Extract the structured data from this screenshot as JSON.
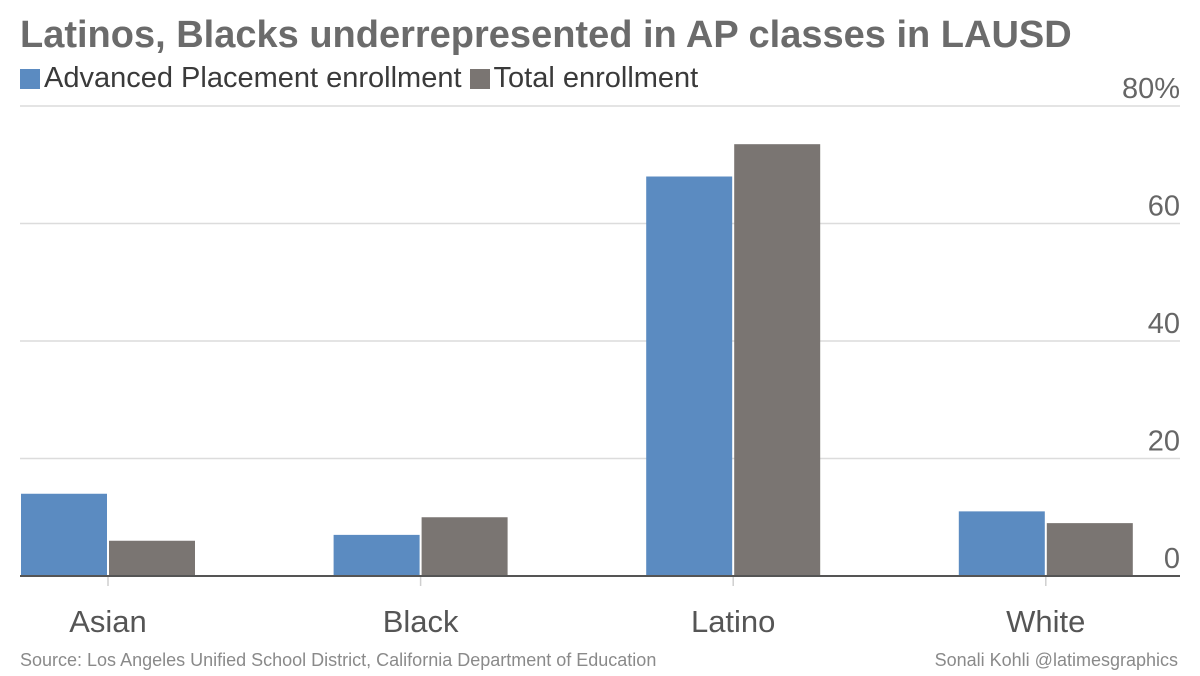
{
  "chart_data": {
    "type": "bar",
    "title": "Latinos, Blacks underrepresented in AP classes in LAUSD",
    "categories": [
      "Asian",
      "Black",
      "Latino",
      "White"
    ],
    "series": [
      {
        "name": "Advanced Placement enrollment",
        "color": "#5b8bc1",
        "values": [
          14,
          7,
          68,
          11
        ]
      },
      {
        "name": "Total enrollment",
        "color": "#7a7572",
        "values": [
          6,
          10,
          73.5,
          9
        ]
      }
    ],
    "ylim": [
      0,
      80
    ],
    "yticks": [
      {
        "value": 0,
        "label": "0"
      },
      {
        "value": 20,
        "label": "20"
      },
      {
        "value": 40,
        "label": "40"
      },
      {
        "value": 60,
        "label": "60"
      },
      {
        "value": 80,
        "label": "80%"
      }
    ],
    "grid": true,
    "legend_position": "top-left",
    "source": "Source: Los Angeles Unified School District, California Department of Education",
    "credit": "Sonali Kohli @latimesgraphics"
  }
}
